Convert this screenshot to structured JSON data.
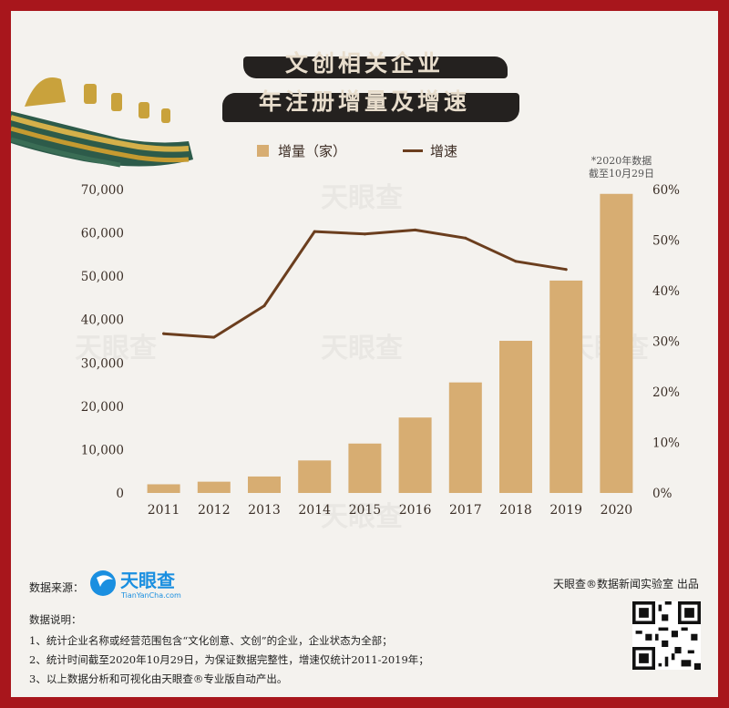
{
  "title": {
    "line1": "文创相关企业",
    "line2": "年注册增量及增速"
  },
  "legend": {
    "bar_label": "增量（家）",
    "line_label": "增速"
  },
  "note": {
    "line1": "*2020年数据",
    "line2": "截至10月29日"
  },
  "footer": {
    "source_label": "数据来源：",
    "logo_text": "天眼查",
    "logo_sub": "TianYanCha.com",
    "credit": "天眼查®数据新闻实验室 出品",
    "notes_title": "数据说明：",
    "note1": "1、统计企业名称或经营范围包含“文化创意、文创”的企业，企业状态为全部；",
    "note2": "2、统计时间截至2020年10月29日，为保证数据完整性，增速仅统计2011-2019年；",
    "note3": "3、以上数据分析和可视化由天眼查®专业版自动产出。"
  },
  "watermark": "天眼查",
  "colors": {
    "bar": "#d7ad72",
    "line": "#6b3e1e",
    "title": "#b3141d",
    "frame": "#a8161c"
  },
  "chart_data": {
    "type": "bar",
    "categories": [
      "2011",
      "2012",
      "2013",
      "2014",
      "2015",
      "2016",
      "2017",
      "2018",
      "2019",
      "2020"
    ],
    "series": [
      {
        "name": "增量（家）",
        "type": "bar",
        "axis": "left",
        "values": [
          2000,
          2600,
          3800,
          7500,
          11400,
          17400,
          25500,
          35100,
          49000,
          69000
        ]
      },
      {
        "name": "增速",
        "type": "line",
        "axis": "right",
        "unit": "%",
        "values": [
          31.5,
          30.8,
          37.0,
          51.7,
          51.2,
          52.0,
          50.4,
          45.8,
          44.2,
          null
        ]
      }
    ],
    "left_axis": {
      "ylim": [
        0,
        70000
      ],
      "ticks": [
        "0",
        "10,000",
        "20,000",
        "30,000",
        "40,000",
        "50,000",
        "60,000",
        "70,000"
      ]
    },
    "right_axis": {
      "ylim": [
        0,
        60
      ],
      "ticks": [
        "0%",
        "10%",
        "20%",
        "30%",
        "40%",
        "50%",
        "60%"
      ]
    },
    "grid": false,
    "legend_position": "top"
  }
}
